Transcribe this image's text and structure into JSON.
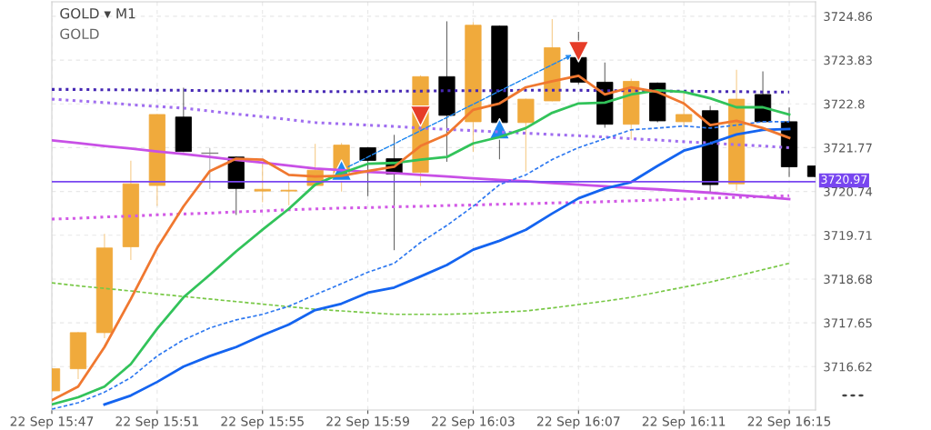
{
  "chart_data": {
    "type": "candlestick",
    "title": "GOLD ▾ M1",
    "subtitle": "GOLD",
    "categories": [
      "22 Sep 15:47",
      null,
      null,
      null,
      "22 Sep 15:51",
      null,
      null,
      null,
      "22 Sep 15:55",
      null,
      null,
      null,
      "22 Sep 15:59",
      null,
      null,
      null,
      "22 Sep 16:03",
      null,
      null,
      null,
      "22 Sep 16:07",
      null,
      null,
      null,
      "22 Sep 16:11",
      null,
      null,
      null,
      "22 Sep 16:15",
      null
    ],
    "ohlc": [
      [
        3716.05,
        3716.57,
        3716.05,
        3716.57
      ],
      [
        3716.57,
        3717.42,
        3716.34,
        3717.42
      ],
      [
        3717.42,
        3719.73,
        3717.3,
        3719.41
      ],
      [
        3719.44,
        3721.45,
        3719.14,
        3720.92
      ],
      [
        3720.88,
        3722.55,
        3720.41,
        3722.55
      ],
      [
        3722.49,
        3723.17,
        3721.68,
        3721.68
      ],
      [
        3721.64,
        3721.75,
        3720.81,
        3721.64
      ],
      [
        3721.55,
        3721.55,
        3720.2,
        3720.81
      ],
      [
        3720.75,
        3721.39,
        3720.5,
        3720.79
      ],
      [
        3720.75,
        3720.96,
        3720.43,
        3720.77
      ],
      [
        3720.88,
        3721.85,
        3720.88,
        3721.24
      ],
      [
        3720.98,
        3721.87,
        3720.75,
        3721.83
      ],
      [
        3721.77,
        3721.77,
        3720.64,
        3721.47
      ],
      [
        3721.51,
        3722.06,
        3719.37,
        3721.15
      ],
      [
        3721.19,
        3723.46,
        3720.88,
        3723.44
      ],
      [
        3723.44,
        3724.73,
        3721.45,
        3722.53
      ],
      [
        3722.38,
        3724.71,
        3721.68,
        3724.65
      ],
      [
        3724.63,
        3724.63,
        3721.51,
        3722.36
      ],
      [
        3722.36,
        3722.91,
        3721.22,
        3722.91
      ],
      [
        3722.87,
        3724.78,
        3722.87,
        3724.12
      ],
      [
        3723.89,
        3724.48,
        3723.27,
        3723.31
      ],
      [
        3723.31,
        3723.76,
        3722.25,
        3722.32
      ],
      [
        3722.32,
        3723.38,
        3721.98,
        3723.33
      ],
      [
        3723.29,
        3723.29,
        3722.38,
        3722.4
      ],
      [
        3722.38,
        3723.08,
        3722.28,
        3722.55
      ],
      [
        3722.64,
        3722.74,
        3720.73,
        3720.9
      ],
      [
        3720.92,
        3723.59,
        3720.77,
        3722.91
      ],
      [
        3723.02,
        3723.55,
        3722.38,
        3722.38
      ],
      [
        3722.38,
        3722.7,
        3721.09,
        3721.32
      ],
      [
        3721.34,
        3721.34,
        3721.09,
        3721.09
      ]
    ],
    "colors": [
      "#f0aa3c",
      "#f0aa3c",
      "#f0aa3c",
      "#f0aa3c",
      "#f0aa3c",
      "#000000",
      "#808080",
      "#000000",
      "#f0aa3c",
      "#f0aa3c",
      "#f0aa3c",
      "#f0aa3c",
      "#000000",
      "#000000",
      "#f0aa3c",
      "#000000",
      "#f0aa3c",
      "#000000",
      "#f0aa3c",
      "#f0aa3c",
      "#000000",
      "#000000",
      "#f0aa3c",
      "#000000",
      "#f0aa3c",
      "#000000",
      "#f0aa3c",
      "#000000",
      "#000000",
      "#000000"
    ],
    "ylim": [
      3715.6,
      3725.2
    ],
    "yticks": [
      3716.62,
      3717.65,
      3718.68,
      3719.71,
      3720.74,
      3721.77,
      3722.8,
      3723.83,
      3724.86
    ],
    "grid": true,
    "ref_lines": [
      {
        "axis": "y",
        "value": 3720.97,
        "label": "3720.97",
        "color": "#7846f0"
      }
    ],
    "series": [
      {
        "type": "line",
        "color": "#78c846",
        "line_style": "dashed",
        "values": [
          3718.59,
          3718.52,
          3718.46,
          3718.4,
          3718.33,
          3718.27,
          3718.21,
          3718.15,
          3718.09,
          3718.03,
          3717.97,
          3717.93,
          3717.89,
          3717.85,
          3717.85,
          3717.85,
          3717.87,
          3717.9,
          3717.93,
          3718.0,
          3718.08,
          3718.16,
          3718.25,
          3718.37,
          3718.49,
          3718.61,
          3718.75,
          3718.9,
          3719.05,
          null
        ]
      },
      {
        "type": "line",
        "color": "#d25ae6",
        "line_style": "dotted",
        "values": [
          3720.09,
          3720.11,
          3720.14,
          3720.16,
          3720.19,
          3720.21,
          3720.23,
          3720.26,
          3720.28,
          3720.31,
          3720.33,
          3720.35,
          3720.36,
          3720.38,
          3720.39,
          3720.41,
          3720.42,
          3720.44,
          3720.45,
          3720.47,
          3720.48,
          3720.5,
          3720.52,
          3720.54,
          3720.56,
          3720.58,
          3720.6,
          3720.62,
          3720.64,
          null
        ]
      },
      {
        "type": "line",
        "color": "#c850e6",
        "line_style": "solid",
        "values": [
          3721.94,
          3721.88,
          3721.81,
          3721.75,
          3721.68,
          3721.62,
          3721.55,
          3721.48,
          3721.42,
          3721.35,
          3721.28,
          3721.24,
          3721.2,
          3721.17,
          3721.13,
          3721.09,
          3721.05,
          3721.01,
          3720.98,
          3720.94,
          3720.9,
          3720.86,
          3720.82,
          3720.79,
          3720.75,
          3720.71,
          3720.66,
          3720.61,
          3720.56,
          null
        ]
      },
      {
        "type": "line",
        "color": "#a06ef0",
        "line_style": "dotted",
        "values": [
          3722.91,
          3722.87,
          3722.83,
          3722.78,
          3722.74,
          3722.7,
          3722.63,
          3722.56,
          3722.5,
          3722.43,
          3722.36,
          3722.33,
          3722.3,
          3722.27,
          3722.23,
          3722.2,
          3722.17,
          3722.14,
          3722.11,
          3722.08,
          3722.05,
          3722.02,
          3721.98,
          3721.95,
          3721.91,
          3721.88,
          3721.84,
          3721.81,
          3721.77,
          null
        ]
      },
      {
        "type": "line",
        "color": "#4628b4",
        "line_style": "dotted",
        "values": [
          3723.14,
          3723.14,
          3723.13,
          3723.13,
          3723.12,
          3723.12,
          3723.11,
          3723.11,
          3723.1,
          3723.1,
          3723.09,
          3723.09,
          3723.09,
          3723.1,
          3723.1,
          3723.11,
          3723.11,
          3723.11,
          3723.12,
          3723.12,
          3723.12,
          3723.11,
          3723.11,
          3723.1,
          3723.1,
          3723.09,
          3723.09,
          3723.08,
          3723.08,
          null
        ]
      },
      {
        "type": "line",
        "color": "#2d78f0",
        "line_style": "dashed",
        "values": [
          3715.62,
          3715.77,
          3716.02,
          3716.36,
          3716.87,
          3717.25,
          3717.53,
          3717.72,
          3717.85,
          3718.04,
          3718.31,
          3718.57,
          3718.84,
          3719.05,
          3719.54,
          3719.94,
          3720.39,
          3720.9,
          3721.13,
          3721.49,
          3721.77,
          3721.98,
          3722.19,
          3722.23,
          3722.28,
          3722.23,
          3722.3,
          3722.38,
          3722.38,
          null
        ]
      },
      {
        "type": "line",
        "color": "#1464f0",
        "line_style": "solid",
        "values": [
          null,
          null,
          3715.73,
          3715.94,
          3716.26,
          3716.62,
          3716.87,
          3717.08,
          3717.36,
          3717.61,
          3717.95,
          3718.1,
          3718.36,
          3718.48,
          3718.74,
          3719.01,
          3719.37,
          3719.58,
          3719.84,
          3720.22,
          3720.58,
          3720.81,
          3720.96,
          3721.34,
          3721.7,
          3721.87,
          3722.08,
          3722.19,
          3722.21,
          null
        ]
      },
      {
        "type": "line",
        "color": "#32c35a",
        "line_style": "solid",
        "values": [
          3715.73,
          3715.9,
          3716.15,
          3716.68,
          3717.51,
          3718.25,
          3718.78,
          3719.33,
          3719.84,
          3720.33,
          3720.9,
          3721.17,
          3721.39,
          3721.41,
          3721.49,
          3721.55,
          3721.87,
          3722.02,
          3722.23,
          3722.59,
          3722.81,
          3722.83,
          3723.02,
          3723.12,
          3723.08,
          3722.93,
          3722.72,
          3722.72,
          3722.55,
          null
        ]
      },
      {
        "type": "line",
        "color": "#f07830",
        "line_style": "solid",
        "values": [
          3715.83,
          3716.15,
          3717.08,
          3718.21,
          3719.41,
          3720.39,
          3721.22,
          3721.51,
          3721.49,
          3721.13,
          3721.09,
          3721.11,
          3721.22,
          3721.32,
          3721.81,
          3722.08,
          3722.66,
          3722.81,
          3723.19,
          3723.33,
          3723.46,
          3723.02,
          3723.19,
          3723.08,
          3722.81,
          3722.3,
          3722.4,
          3722.23,
          3722.0,
          null
        ]
      },
      {
        "type": "scatter",
        "color": "#1e87f0",
        "marker": "triangle",
        "values": [
          null,
          null,
          null,
          null,
          null,
          null,
          null,
          null,
          null,
          null,
          null,
          3721.24,
          null,
          null,
          null,
          null,
          null,
          3722.21,
          null,
          null,
          null,
          null,
          null,
          null,
          null,
          null,
          null,
          null,
          null,
          null
        ]
      },
      {
        "type": "scatter",
        "color": "#e63c28",
        "marker": "triangle_down",
        "values": [
          null,
          null,
          null,
          null,
          null,
          null,
          null,
          null,
          null,
          null,
          null,
          null,
          null,
          null,
          3722.51,
          null,
          null,
          null,
          null,
          null,
          3724.03,
          null,
          null,
          null,
          null,
          null,
          null,
          null,
          null,
          null
        ]
      }
    ]
  }
}
